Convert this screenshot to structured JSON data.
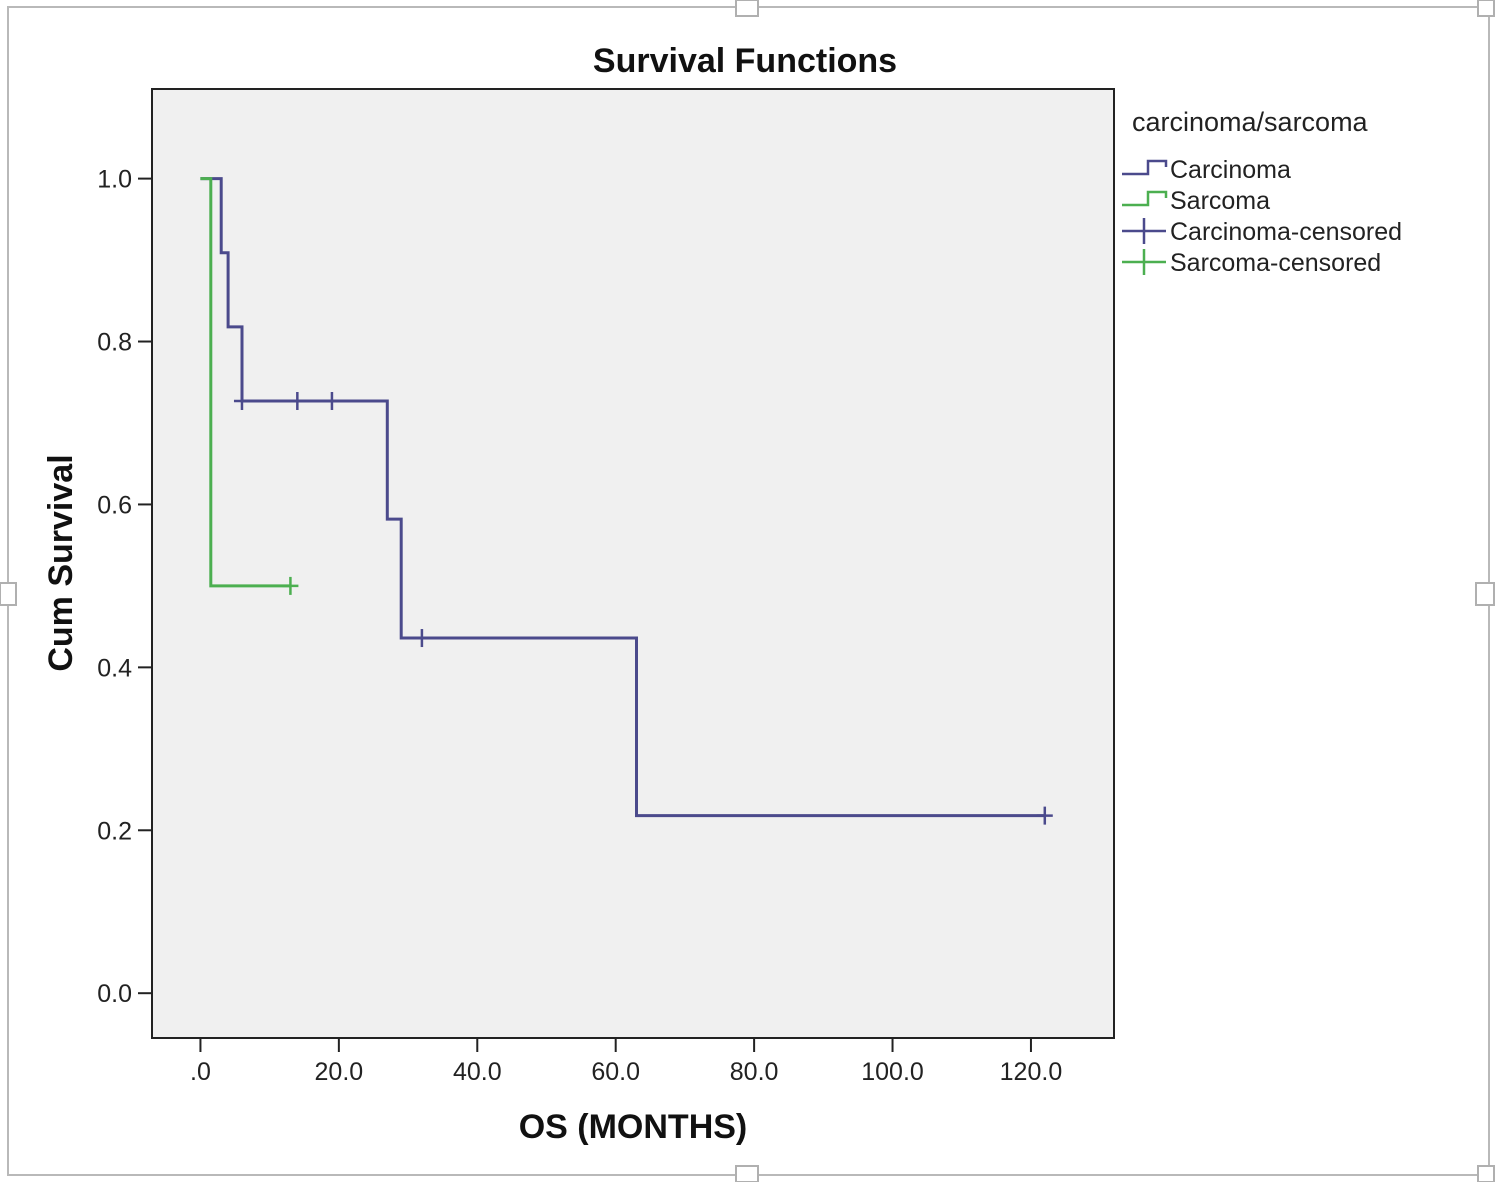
{
  "chart_data": {
    "type": "line",
    "step": true,
    "title": "Survival Functions",
    "xlabel": "OS (MONTHS)",
    "ylabel": "Cum Survival",
    "xlim": [
      -7,
      132
    ],
    "ylim": [
      -0.055,
      1.11
    ],
    "x_ticks": [
      0,
      20,
      40,
      60,
      80,
      100,
      120
    ],
    "x_tick_labels": [
      ".0",
      "20.0",
      "40.0",
      "60.0",
      "80.0",
      "100.0",
      "120.0"
    ],
    "y_ticks": [
      0,
      0.2,
      0.4,
      0.6,
      0.8,
      1.0
    ],
    "y_tick_labels": [
      "0.0",
      "0.2",
      "0.4",
      "0.6",
      "0.8",
      "1.0"
    ],
    "grid": false,
    "legend_title": "carcinoma/sarcoma",
    "legend_position": "right",
    "legend": [
      "Carcinoma",
      "Sarcoma",
      "Carcinoma-censored",
      "Sarcoma-censored"
    ],
    "series": [
      {
        "name": "Carcinoma",
        "color": "#4b4a8c",
        "points": [
          [
            0,
            1.0
          ],
          [
            3,
            1.0
          ],
          [
            3,
            0.909
          ],
          [
            4,
            0.909
          ],
          [
            4,
            0.818
          ],
          [
            6,
            0.818
          ],
          [
            6,
            0.727
          ],
          [
            27,
            0.727
          ],
          [
            27,
            0.582
          ],
          [
            29,
            0.582
          ],
          [
            29,
            0.436
          ],
          [
            63,
            0.436
          ],
          [
            63,
            0.218
          ],
          [
            122,
            0.218
          ]
        ],
        "censored": [
          [
            6,
            0.727
          ],
          [
            14,
            0.727
          ],
          [
            19,
            0.727
          ],
          [
            32,
            0.436
          ],
          [
            122,
            0.218
          ]
        ]
      },
      {
        "name": "Sarcoma",
        "color": "#4caf50",
        "points": [
          [
            0,
            1.0
          ],
          [
            1.5,
            1.0
          ],
          [
            1.5,
            0.5
          ],
          [
            13,
            0.5
          ]
        ],
        "censored": [
          [
            13,
            0.5
          ]
        ]
      }
    ]
  }
}
